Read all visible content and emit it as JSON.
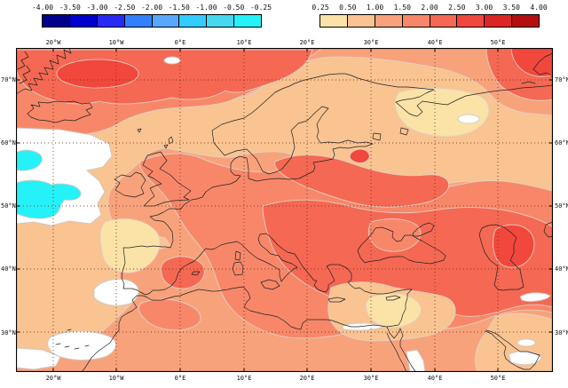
{
  "colorbars": {
    "negative": {
      "ticks": [
        "-4.00",
        "-3.50",
        "-3.00",
        "-2.50",
        "-2.00",
        "-1.50",
        "-1.00",
        "-0.50",
        "-0.25"
      ]
    },
    "positive": {
      "ticks": [
        "0.25",
        "0.50",
        "1.00",
        "1.50",
        "2.00",
        "2.50",
        "3.00",
        "3.50",
        "4.00"
      ]
    }
  },
  "palette": {
    "negative": [
      "#00008B",
      "#0000CD",
      "#2929F5",
      "#3380FF",
      "#59A8FF",
      "#33CCFF",
      "#45D8F0",
      "#25F2F8"
    ],
    "positive": [
      "#FBE3A8",
      "#F9C392",
      "#F8A27C",
      "#F8876A",
      "#F56853",
      "#F1473C",
      "#DC2626",
      "#B40F10"
    ],
    "neutral": "#FFFFFF"
  },
  "axes": {
    "lon_labels": [
      "20°W",
      "10°W",
      "0°E",
      "10°E",
      "20°E",
      "30°E",
      "40°E",
      "50°E"
    ],
    "lat_labels": [
      "70°N",
      "60°N",
      "50°N",
      "40°N",
      "30°N"
    ]
  }
}
